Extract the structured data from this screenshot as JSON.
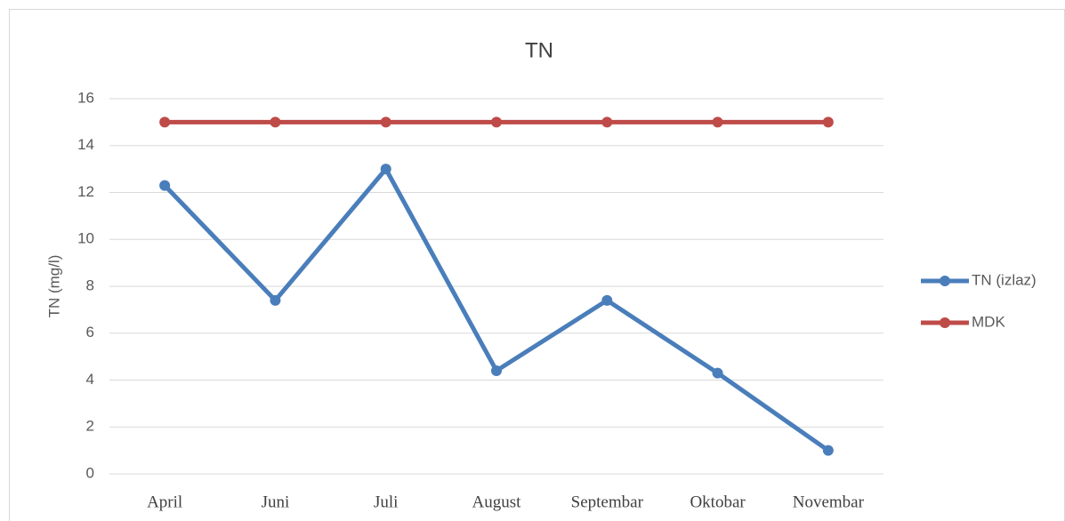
{
  "chart_data": {
    "type": "line",
    "title": "TN",
    "y_label": "TN (mg/l)",
    "categories": [
      "April",
      "Juni",
      "Juli",
      "August",
      "Septembar",
      "Oktobar",
      "Novembar"
    ],
    "series": [
      {
        "name": "TN (izlaz)",
        "color": "#4a7ebb",
        "values": [
          12.3,
          7.4,
          13.0,
          4.4,
          7.4,
          4.3,
          1.0
        ]
      },
      {
        "name": "MDK",
        "color": "#be4b48",
        "values": [
          15,
          15,
          15,
          15,
          15,
          15,
          15
        ]
      }
    ],
    "ylim": [
      0,
      16
    ],
    "yticks": [
      0,
      2,
      4,
      6,
      8,
      10,
      12,
      14,
      16
    ],
    "grid": true,
    "legend": "right"
  }
}
